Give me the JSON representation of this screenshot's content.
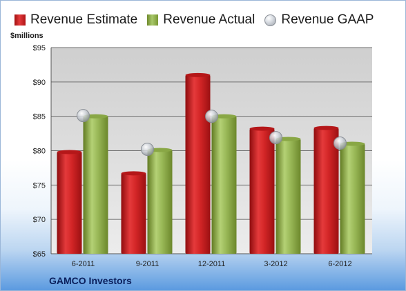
{
  "unit_label": "$millions",
  "brand": "GAMCO Investors",
  "colors": {
    "estimate": "#c41b1d",
    "actual": "#8fae4a",
    "gaap": "#c8ccd2"
  },
  "chart_data": {
    "type": "bar",
    "categories": [
      "6-2011",
      "9-2011",
      "12-2011",
      "3-2012",
      "6-2012"
    ],
    "series": [
      {
        "name": "Revenue Estimate",
        "kind": "bar",
        "values": [
          79.8,
          76.7,
          91.0,
          83.2,
          83.3
        ]
      },
      {
        "name": "Revenue Actual",
        "kind": "bar",
        "values": [
          85.0,
          80.1,
          85.0,
          81.7,
          81.0
        ]
      },
      {
        "name": "Revenue GAAP",
        "kind": "marker",
        "values": [
          85.1,
          80.2,
          85.0,
          81.9,
          81.1
        ]
      }
    ],
    "yticks": [
      "$65",
      "$70",
      "$75",
      "$80",
      "$85",
      "$90",
      "$95"
    ],
    "ylim": [
      65,
      95
    ],
    "legend": "top",
    "grid": true
  }
}
